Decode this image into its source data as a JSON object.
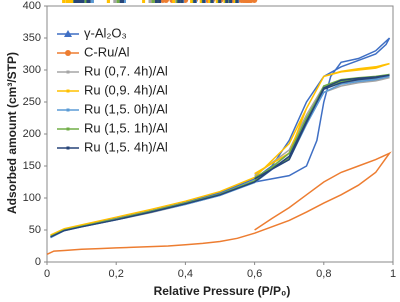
{
  "chart_data": {
    "type": "line",
    "x_label": "Relative Pressure (P/P₀)",
    "y_label": "Adsorbed amount (cm³/STP)",
    "xlim": [
      0,
      1
    ],
    "xticks": [
      0,
      {
        "value": 0.2,
        "label": "0,2"
      },
      {
        "value": 0.4,
        "label": "0,4"
      },
      {
        "value": 0.6,
        "label": "0,6"
      },
      {
        "value": 0.8,
        "label": "0,8"
      },
      1
    ],
    "ylim": [
      0,
      400
    ],
    "yticks": [
      0,
      50,
      100,
      150,
      200,
      250,
      300,
      350,
      400
    ],
    "grid": false,
    "legend": "top-left",
    "series": [
      {
        "name": "γ-Al₂O₃",
        "color": "#3f6fc4",
        "marker": "triangle",
        "x": [
          0.01,
          0.05,
          0.1,
          0.2,
          0.3,
          0.4,
          0.5,
          0.6,
          0.65,
          0.7,
          0.75,
          0.8,
          0.85,
          0.9,
          0.95,
          0.98,
          0.99,
          0.95,
          0.9,
          0.85,
          0.82,
          0.8,
          0.78,
          0.75,
          0.7,
          0.6
        ],
        "values": [
          40,
          50,
          57,
          68,
          80,
          93,
          108,
          130,
          150,
          190,
          250,
          290,
          305,
          315,
          325,
          340,
          350,
          330,
          318,
          312,
          290,
          250,
          190,
          150,
          135,
          125
        ]
      },
      {
        "name": "C-Ru/Al",
        "color": "#ed7d31",
        "marker": "circle",
        "x": [
          0,
          0.02,
          0.05,
          0.1,
          0.15,
          0.2,
          0.25,
          0.3,
          0.35,
          0.4,
          0.45,
          0.5,
          0.55,
          0.6,
          0.65,
          0.7,
          0.75,
          0.8,
          0.85,
          0.9,
          0.95,
          0.97,
          0.99,
          0.97,
          0.95,
          0.9,
          0.85,
          0.8,
          0.75,
          0.7,
          0.65,
          0.6
        ],
        "values": [
          12,
          17,
          18,
          20,
          21,
          22,
          23,
          24,
          25,
          27,
          29,
          32,
          37,
          45,
          55,
          65,
          78,
          92,
          105,
          120,
          140,
          155,
          170,
          165,
          160,
          150,
          140,
          125,
          105,
          85,
          68,
          50
        ]
      },
      {
        "name": "Ru (0,7. 4h)/Al",
        "color": "#a5a5a5",
        "marker": "small",
        "x": [
          0.01,
          0.05,
          0.1,
          0.2,
          0.3,
          0.4,
          0.5,
          0.6,
          0.7,
          0.75,
          0.8,
          0.85,
          0.9,
          0.95,
          0.99,
          0.95,
          0.9,
          0.85,
          0.8,
          0.75,
          0.7,
          0.6
        ],
        "values": [
          40,
          50,
          55,
          66,
          77,
          90,
          104,
          125,
          170,
          220,
          265,
          275,
          280,
          283,
          288,
          286,
          283,
          280,
          275,
          230,
          175,
          135
        ]
      },
      {
        "name": "Ru (0,9. 4h)/Al",
        "color": "#ffc000",
        "marker": "small",
        "x": [
          0.01,
          0.05,
          0.1,
          0.2,
          0.3,
          0.4,
          0.5,
          0.6,
          0.7,
          0.75,
          0.8,
          0.85,
          0.9,
          0.95,
          0.99,
          0.95,
          0.9,
          0.85,
          0.8,
          0.75,
          0.7,
          0.6
        ],
        "values": [
          42,
          52,
          58,
          70,
          82,
          95,
          110,
          132,
          185,
          240,
          290,
          297,
          300,
          303,
          310,
          305,
          302,
          298,
          290,
          240,
          170,
          138
        ]
      },
      {
        "name": "Ru (1,5. 0h)/Al",
        "color": "#5b9bd5",
        "marker": "small",
        "x": [
          0.01,
          0.05,
          0.1,
          0.2,
          0.3,
          0.4,
          0.5,
          0.6,
          0.7,
          0.75,
          0.8,
          0.85,
          0.9,
          0.95,
          0.99,
          0.95,
          0.9,
          0.85,
          0.8,
          0.75,
          0.7,
          0.6
        ],
        "values": [
          38,
          49,
          55,
          66,
          78,
          90,
          104,
          124,
          165,
          215,
          265,
          278,
          282,
          285,
          290,
          287,
          285,
          282,
          270,
          215,
          160,
          130
        ]
      },
      {
        "name": "Ru (1,5. 1h)/Al",
        "color": "#70ad47",
        "marker": "small",
        "x": [
          0.01,
          0.05,
          0.1,
          0.2,
          0.3,
          0.4,
          0.5,
          0.6,
          0.7,
          0.75,
          0.8,
          0.85,
          0.9,
          0.95,
          0.99,
          0.95,
          0.9,
          0.85,
          0.8,
          0.75,
          0.7,
          0.6
        ],
        "values": [
          40,
          50,
          56,
          67,
          79,
          92,
          106,
          127,
          170,
          225,
          272,
          282,
          286,
          288,
          293,
          290,
          288,
          285,
          275,
          220,
          162,
          132
        ]
      },
      {
        "name": "Ru (1,5. 4h)/Al",
        "color": "#264478",
        "marker": "small",
        "x": [
          0.01,
          0.05,
          0.1,
          0.2,
          0.3,
          0.4,
          0.5,
          0.6,
          0.7,
          0.75,
          0.8,
          0.85,
          0.9,
          0.95,
          0.99,
          0.95,
          0.9,
          0.85,
          0.8,
          0.75,
          0.7,
          0.6
        ],
        "values": [
          39,
          49,
          55,
          66,
          78,
          91,
          105,
          125,
          165,
          220,
          270,
          280,
          285,
          288,
          292,
          289,
          287,
          284,
          272,
          218,
          160,
          130
        ]
      }
    ]
  }
}
